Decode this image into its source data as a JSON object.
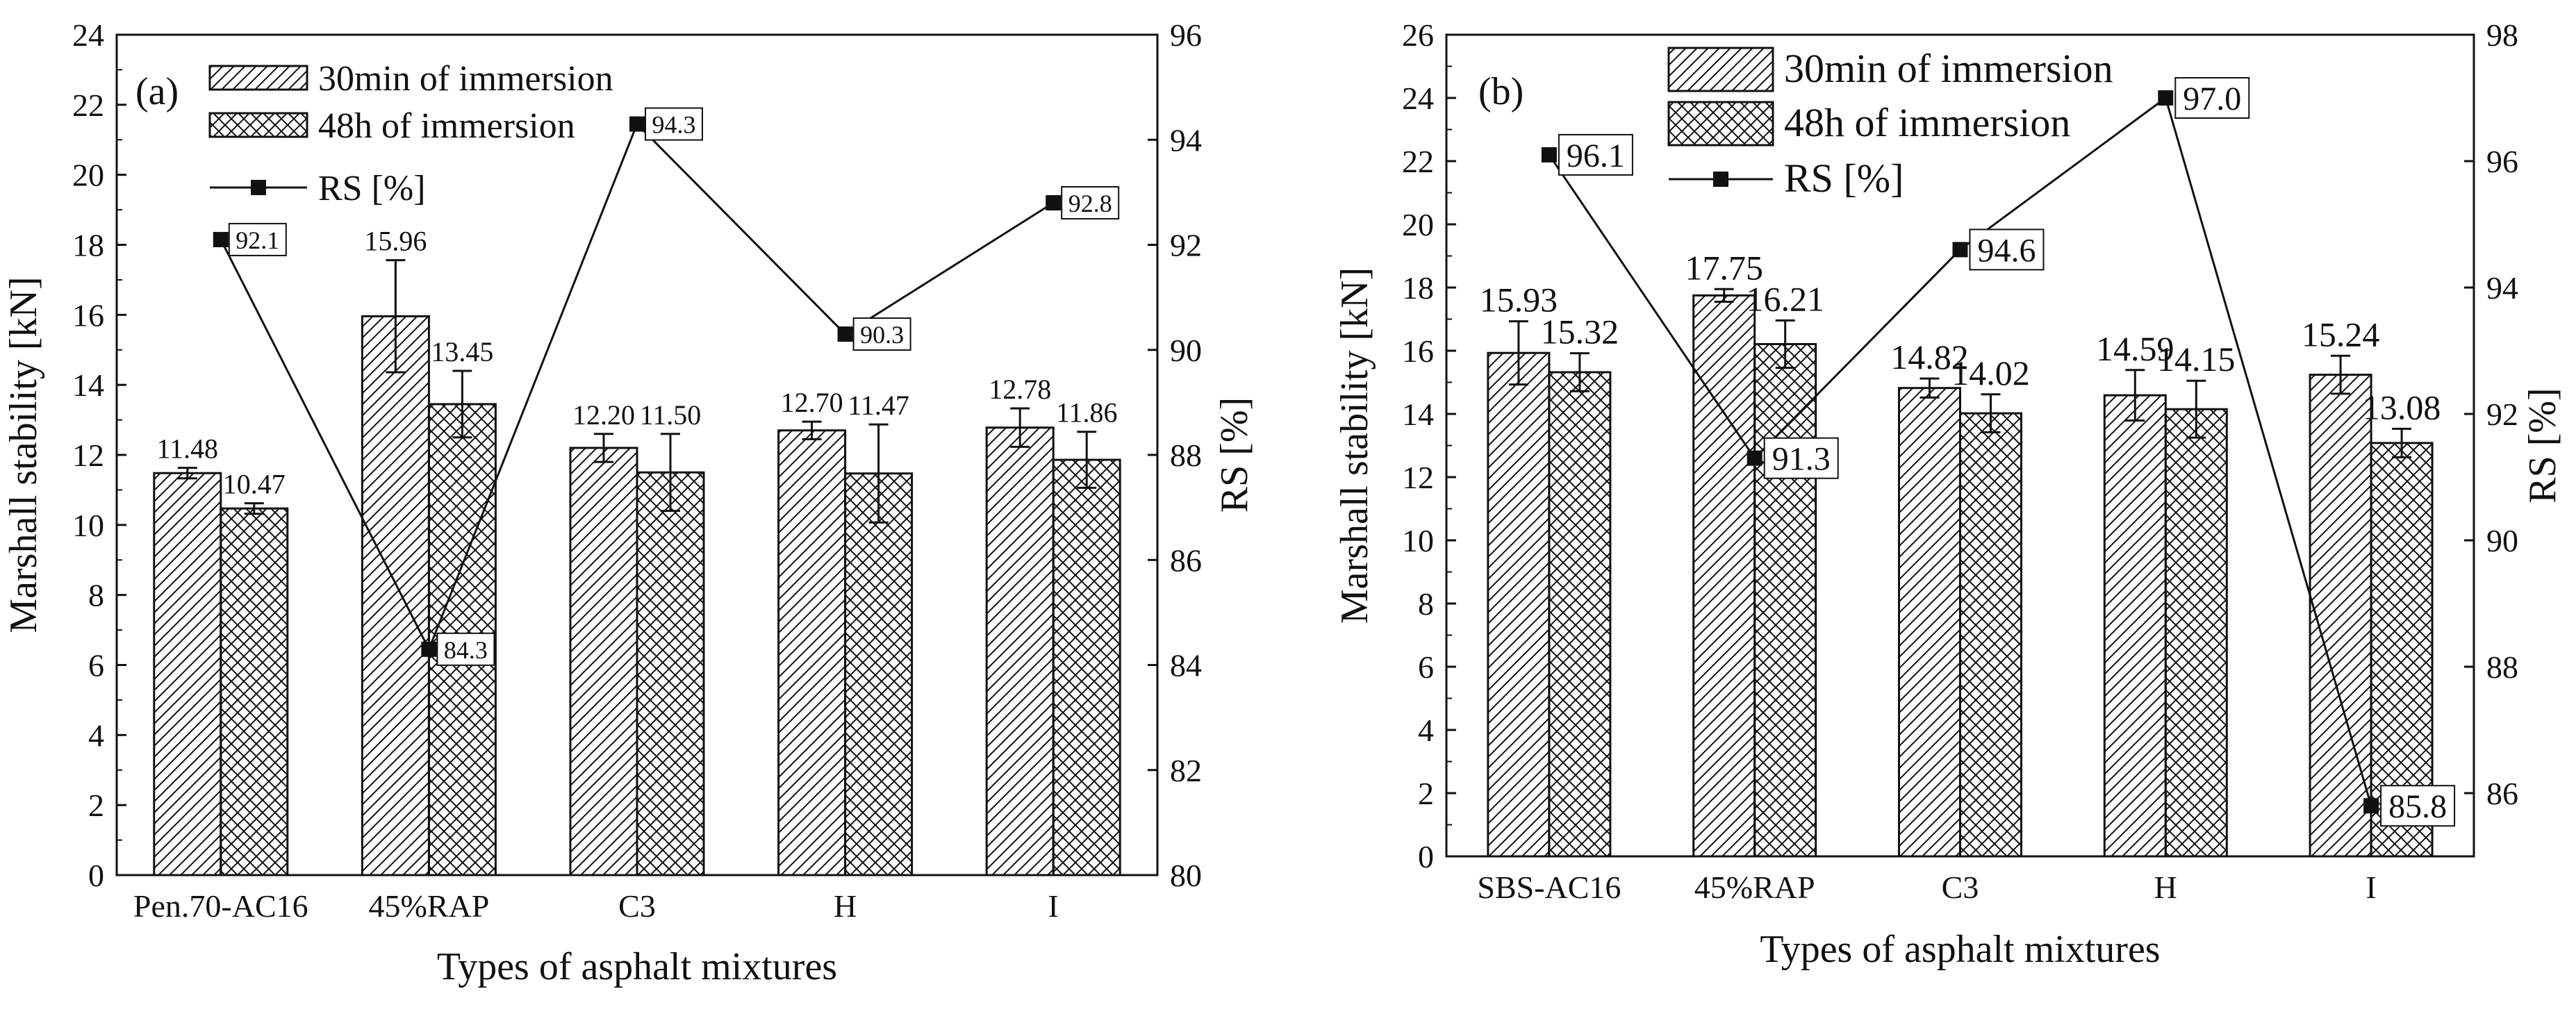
{
  "colors": {
    "ink": "#111111",
    "background": "#ffffff"
  },
  "chart_data": [
    {
      "panel": "(a)",
      "type": "bar",
      "xlabel": "Types of asphalt mixtures",
      "ylabel": "Marshall stability [kN]",
      "y2label": "RS [%]",
      "ylim": [
        0,
        24
      ],
      "yticks": [
        "0",
        "2",
        "4",
        "6",
        "8",
        "10",
        "12",
        "14",
        "16",
        "18",
        "20",
        "22",
        "24"
      ],
      "y2lim": [
        80,
        96
      ],
      "y2ticks": [
        "80",
        "82",
        "84",
        "86",
        "88",
        "90",
        "92",
        "94",
        "96"
      ],
      "categories": [
        "Pen.70-AC16",
        "45%RAP",
        "C3",
        "H",
        "I"
      ],
      "series": [
        {
          "name": "30min of immersion",
          "pattern": "diagonal hatch",
          "values": [
            11.48,
            15.96,
            12.2,
            12.7,
            12.78
          ],
          "labels": [
            "11.48",
            "15.96",
            "12.20",
            "12.70",
            "12.78"
          ],
          "error": [
            0.15,
            1.6,
            0.4,
            0.25,
            0.55
          ]
        },
        {
          "name": "48h of immersion",
          "pattern": "cross hatch",
          "values": [
            10.47,
            13.45,
            11.5,
            11.47,
            11.86
          ],
          "labels": [
            "10.47",
            "13.45",
            "11.50",
            "11.47",
            "11.86"
          ],
          "error": [
            0.15,
            0.95,
            1.1,
            1.4,
            0.8
          ]
        }
      ],
      "line": {
        "name": "RS [%]",
        "axis": "right",
        "values": [
          92.1,
          84.3,
          94.3,
          90.3,
          92.8
        ],
        "labels": [
          "92.1",
          "84.3",
          "94.3",
          "90.3",
          "92.8"
        ]
      },
      "legend": "top-left"
    },
    {
      "panel": "(b)",
      "type": "bar",
      "xlabel": "Types of asphalt mixtures",
      "ylabel": "Marshall stability [kN]",
      "y2label": "RS [%]",
      "ylim": [
        0,
        26
      ],
      "yticks": [
        "0",
        "2",
        "4",
        "6",
        "8",
        "10",
        "12",
        "14",
        "16",
        "18",
        "20",
        "22",
        "24",
        "26"
      ],
      "y2lim": [
        85,
        98
      ],
      "y2ticks": [
        "86",
        "88",
        "90",
        "92",
        "94",
        "96",
        "98"
      ],
      "categories": [
        "SBS-AC16",
        "45%RAP",
        "C3",
        "H",
        "I"
      ],
      "series": [
        {
          "name": "30min of immersion",
          "pattern": "diagonal hatch",
          "values": [
            15.93,
            17.75,
            14.82,
            14.59,
            15.24
          ],
          "labels": [
            "15.93",
            "17.75",
            "14.82",
            "14.59",
            "15.24"
          ],
          "error": [
            1.0,
            0.2,
            0.3,
            0.8,
            0.6
          ]
        },
        {
          "name": "48h of immersion",
          "pattern": "cross hatch",
          "values": [
            15.32,
            16.21,
            14.02,
            14.15,
            13.08
          ],
          "labels": [
            "15.32",
            "16.21",
            "14.02",
            "14.15",
            "13.08"
          ],
          "error": [
            0.6,
            0.75,
            0.6,
            0.9,
            0.45
          ]
        }
      ],
      "line": {
        "name": "RS [%]",
        "axis": "right",
        "values": [
          96.1,
          91.3,
          94.6,
          97.0,
          85.8
        ],
        "labels": [
          "96.1",
          "91.3",
          "94.6",
          "97.0",
          "85.8"
        ]
      },
      "legend": "top-left"
    }
  ]
}
